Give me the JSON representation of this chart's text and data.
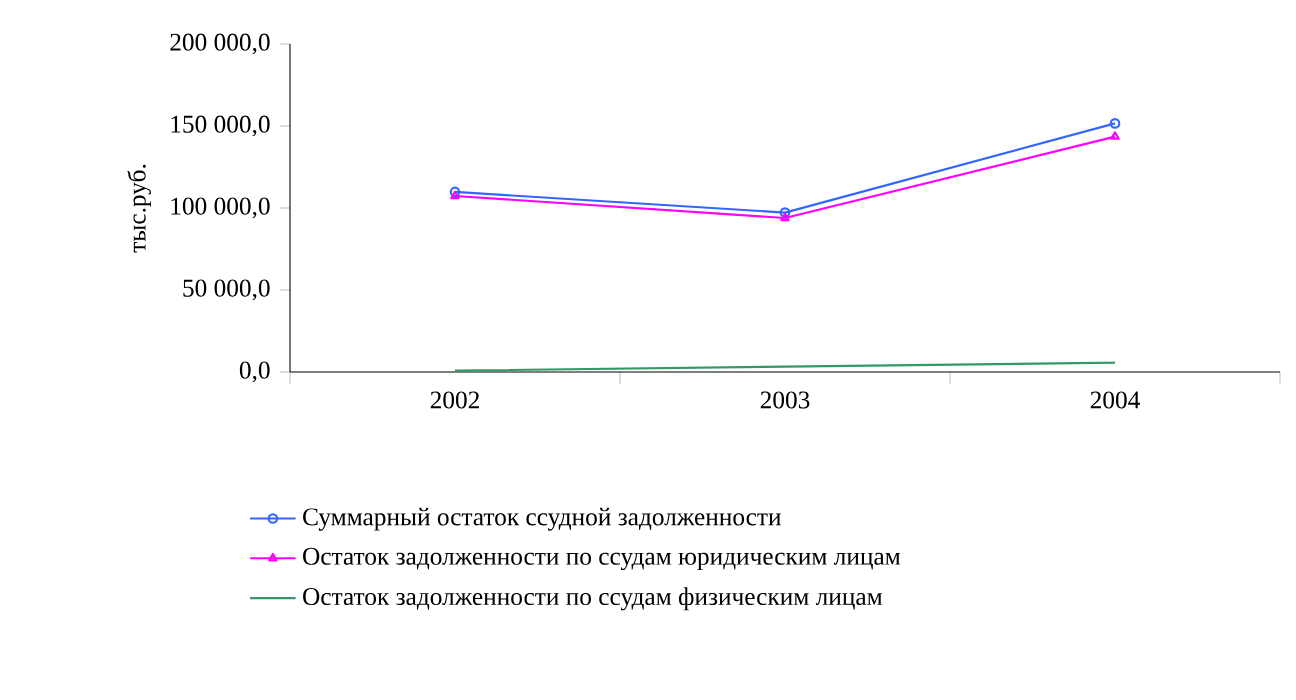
{
  "chart_data": {
    "type": "line",
    "ylabel": "тыс.руб.",
    "categories": [
      "2002",
      "2003",
      "2004"
    ],
    "series": [
      {
        "name": "Суммарный остаток ссудной задолженности",
        "color": "#3366ff",
        "marker": "circle",
        "values": [
          109800,
          97200,
          151600
        ]
      },
      {
        "name": "Остаток задолженности по ссудам юридическим лицам",
        "color": "#ff00ff",
        "marker": "triangle",
        "values": [
          107300,
          93900,
          143500
        ]
      },
      {
        "name": "Остаток задолженности по ссудам физическим лицам",
        "color": "#339966",
        "marker": "none",
        "values": [
          800,
          3300,
          5700
        ]
      }
    ],
    "ylim": [
      0,
      200000
    ],
    "yticks": [
      {
        "value": 0,
        "label": "0,0"
      },
      {
        "value": 50000,
        "label": "50 000,0"
      },
      {
        "value": 100000,
        "label": "100 000,0"
      },
      {
        "value": 150000,
        "label": "150 000,0"
      },
      {
        "value": 200000,
        "label": "200 000,0"
      }
    ],
    "grid": false,
    "legend": "bottom",
    "line_style": "solid"
  }
}
